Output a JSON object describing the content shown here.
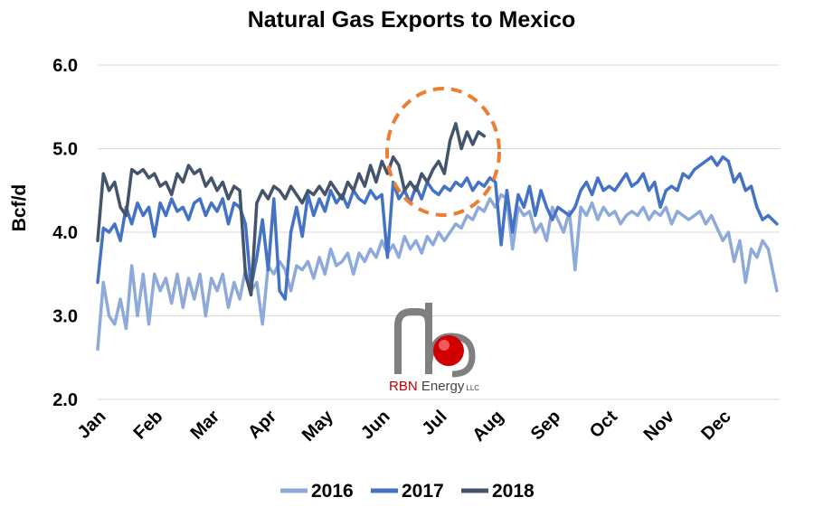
{
  "chart_data": {
    "type": "line",
    "title": "Natural Gas Exports to Mexico",
    "xlabel": "",
    "ylabel": "Bcf/d",
    "ylim": [
      2.0,
      6.0
    ],
    "y_ticks": [
      "6.0",
      "5.0",
      "4.0",
      "3.0",
      "2.0"
    ],
    "x_ticks": [
      "Jan",
      "Feb",
      "Mar",
      "Apr",
      "May",
      "Jun",
      "Jul",
      "Aug",
      "Sep",
      "Oct",
      "Nov",
      "Dec"
    ],
    "grid": true,
    "legend_position": "bottom-center",
    "series": [
      {
        "name": "2016",
        "color": "#8eaadb",
        "x": [
          0,
          0.1,
          0.2,
          0.3,
          0.4,
          0.5,
          0.6,
          0.7,
          0.8,
          0.9,
          1.0,
          1.1,
          1.2,
          1.3,
          1.4,
          1.5,
          1.6,
          1.7,
          1.8,
          1.9,
          2.0,
          2.1,
          2.2,
          2.3,
          2.4,
          2.5,
          2.6,
          2.7,
          2.8,
          2.9,
          3.0,
          3.1,
          3.2,
          3.3,
          3.4,
          3.5,
          3.6,
          3.7,
          3.8,
          3.9,
          4.0,
          4.1,
          4.2,
          4.3,
          4.4,
          4.5,
          4.6,
          4.7,
          4.8,
          4.9,
          5.0,
          5.1,
          5.2,
          5.3,
          5.4,
          5.5,
          5.6,
          5.7,
          5.8,
          5.9,
          6.0,
          6.1,
          6.2,
          6.3,
          6.4,
          6.5,
          6.6,
          6.7,
          6.8,
          6.9,
          7.0,
          7.1,
          7.2,
          7.3,
          7.4,
          7.5,
          7.6,
          7.7,
          7.8,
          7.9,
          8.0,
          8.1,
          8.2,
          8.3,
          8.4,
          8.5,
          8.6,
          8.7,
          8.8,
          8.9,
          9.0,
          9.1,
          9.2,
          9.3,
          9.4,
          9.5,
          9.6,
          9.7,
          9.8,
          9.9,
          10.0,
          10.1,
          10.2,
          10.3,
          10.4,
          10.5,
          10.6,
          10.7,
          10.8,
          10.9,
          11.0,
          11.1,
          11.2,
          11.3,
          11.4,
          11.5,
          11.6,
          11.7,
          11.8,
          11.95
        ],
        "values": [
          2.6,
          3.4,
          3.0,
          2.9,
          3.2,
          2.85,
          3.6,
          3.0,
          3.5,
          2.9,
          3.5,
          3.3,
          3.45,
          3.15,
          3.5,
          3.1,
          3.45,
          3.2,
          3.5,
          3.0,
          3.45,
          3.3,
          3.5,
          3.1,
          3.4,
          3.2,
          3.55,
          3.3,
          3.4,
          2.9,
          3.6,
          3.5,
          3.65,
          3.55,
          3.3,
          3.6,
          3.55,
          3.65,
          3.45,
          3.7,
          3.5,
          3.8,
          3.6,
          3.65,
          3.75,
          3.5,
          3.75,
          3.65,
          3.8,
          3.7,
          3.9,
          3.75,
          3.85,
          3.7,
          3.95,
          3.8,
          3.9,
          3.75,
          3.95,
          3.85,
          4.0,
          3.9,
          4.0,
          4.1,
          4.05,
          4.2,
          4.15,
          4.3,
          4.25,
          4.4,
          4.3,
          4.45,
          4.4,
          3.8,
          4.3,
          4.2,
          4.25,
          4.0,
          4.1,
          3.9,
          4.3,
          4.15,
          4.0,
          4.25,
          3.55,
          4.3,
          4.2,
          4.35,
          4.15,
          4.3,
          4.2,
          4.25,
          4.1,
          4.2,
          4.25,
          4.2,
          4.3,
          4.15,
          4.25,
          4.2,
          4.3,
          4.1,
          4.25,
          4.2,
          4.15,
          4.2,
          4.25,
          4.1,
          4.2,
          4.05,
          3.9,
          4.0,
          3.65,
          3.9,
          3.4,
          3.8,
          3.7,
          3.9,
          3.8,
          3.3
        ]
      },
      {
        "name": "2017",
        "color": "#4472c4",
        "x": [
          0,
          0.1,
          0.2,
          0.3,
          0.4,
          0.5,
          0.6,
          0.7,
          0.8,
          0.9,
          1.0,
          1.1,
          1.2,
          1.3,
          1.4,
          1.5,
          1.6,
          1.7,
          1.8,
          1.9,
          2.0,
          2.1,
          2.2,
          2.3,
          2.4,
          2.5,
          2.6,
          2.7,
          2.8,
          2.9,
          3.0,
          3.1,
          3.2,
          3.3,
          3.4,
          3.5,
          3.6,
          3.7,
          3.8,
          3.9,
          4.0,
          4.1,
          4.2,
          4.3,
          4.4,
          4.5,
          4.6,
          4.7,
          4.8,
          4.9,
          5.0,
          5.1,
          5.2,
          5.3,
          5.4,
          5.5,
          5.6,
          5.7,
          5.8,
          5.9,
          6.0,
          6.1,
          6.2,
          6.3,
          6.4,
          6.5,
          6.6,
          6.7,
          6.8,
          6.9,
          7.0,
          7.1,
          7.2,
          7.3,
          7.4,
          7.5,
          7.6,
          7.7,
          7.8,
          7.9,
          8.0,
          8.1,
          8.2,
          8.3,
          8.4,
          8.5,
          8.6,
          8.7,
          8.8,
          8.9,
          9.0,
          9.1,
          9.2,
          9.3,
          9.4,
          9.5,
          9.6,
          9.7,
          9.8,
          9.9,
          10.0,
          10.1,
          10.2,
          10.3,
          10.4,
          10.5,
          10.6,
          10.7,
          10.8,
          10.9,
          11.0,
          11.1,
          11.2,
          11.3,
          11.4,
          11.5,
          11.6,
          11.7,
          11.8,
          11.95
        ],
        "values": [
          3.4,
          4.05,
          4.0,
          4.1,
          3.9,
          4.3,
          4.1,
          4.35,
          4.2,
          4.3,
          3.95,
          4.35,
          4.2,
          4.4,
          4.25,
          4.3,
          4.15,
          4.35,
          4.4,
          4.2,
          4.35,
          4.25,
          4.4,
          4.1,
          4.35,
          4.3,
          4.1,
          3.35,
          3.7,
          4.15,
          3.55,
          4.4,
          3.3,
          3.2,
          4.0,
          4.3,
          3.95,
          4.45,
          4.2,
          4.4,
          4.25,
          4.5,
          4.35,
          4.45,
          4.3,
          4.5,
          4.4,
          4.35,
          4.5,
          4.4,
          4.45,
          3.7,
          4.6,
          4.4,
          4.5,
          4.35,
          4.55,
          4.4,
          4.6,
          4.5,
          4.45,
          4.55,
          4.5,
          4.6,
          4.55,
          4.65,
          4.5,
          4.6,
          4.55,
          4.65,
          4.6,
          3.85,
          4.5,
          4.0,
          4.45,
          4.3,
          4.55,
          4.2,
          4.5,
          4.3,
          4.15,
          4.3,
          4.25,
          4.2,
          4.3,
          4.5,
          4.6,
          4.45,
          4.65,
          4.5,
          4.55,
          4.5,
          4.6,
          4.7,
          4.55,
          4.6,
          4.7,
          4.5,
          4.6,
          4.3,
          4.5,
          4.55,
          4.5,
          4.7,
          4.65,
          4.75,
          4.8,
          4.85,
          4.9,
          4.8,
          4.9,
          4.85,
          4.6,
          4.7,
          4.5,
          4.55,
          4.3,
          4.15,
          4.2,
          4.1
        ]
      },
      {
        "name": "2018",
        "color": "#44546a",
        "x": [
          0,
          0.1,
          0.2,
          0.3,
          0.4,
          0.5,
          0.6,
          0.7,
          0.8,
          0.9,
          1.0,
          1.1,
          1.2,
          1.3,
          1.4,
          1.5,
          1.6,
          1.7,
          1.8,
          1.9,
          2.0,
          2.1,
          2.2,
          2.3,
          2.4,
          2.5,
          2.6,
          2.7,
          2.8,
          2.9,
          3.0,
          3.1,
          3.2,
          3.3,
          3.4,
          3.5,
          3.6,
          3.7,
          3.8,
          3.9,
          4.0,
          4.1,
          4.2,
          4.3,
          4.4,
          4.5,
          4.6,
          4.7,
          4.8,
          4.9,
          5.0,
          5.1,
          5.2,
          5.3,
          5.4,
          5.5,
          5.6,
          5.7,
          5.8,
          5.9,
          6.0,
          6.1,
          6.2,
          6.3,
          6.4,
          6.5,
          6.6,
          6.7,
          6.8
        ],
        "values": [
          3.9,
          4.7,
          4.5,
          4.6,
          4.3,
          4.2,
          4.75,
          4.7,
          4.75,
          4.65,
          4.7,
          4.55,
          4.6,
          4.45,
          4.7,
          4.6,
          4.8,
          4.7,
          4.75,
          4.55,
          4.65,
          4.5,
          4.6,
          4.4,
          4.55,
          4.5,
          3.5,
          3.25,
          4.35,
          4.5,
          4.4,
          4.55,
          4.5,
          4.4,
          4.55,
          4.45,
          4.35,
          4.5,
          4.45,
          4.55,
          4.45,
          4.6,
          4.5,
          4.4,
          4.6,
          4.5,
          4.7,
          4.55,
          4.8,
          4.6,
          4.85,
          4.7,
          4.9,
          4.8,
          4.5,
          4.6,
          4.5,
          4.7,
          4.6,
          4.75,
          4.85,
          4.7,
          5.1,
          5.3,
          5.0,
          5.2,
          5.05,
          5.2,
          5.15
        ]
      }
    ],
    "annotations": [
      {
        "kind": "dashed-circle",
        "color": "#ed7d31",
        "around": "2018 Jul peak"
      }
    ],
    "source_logo": {
      "text": "RBN Energy",
      "suffix": "LLC",
      "text_color": "#c00000"
    }
  }
}
